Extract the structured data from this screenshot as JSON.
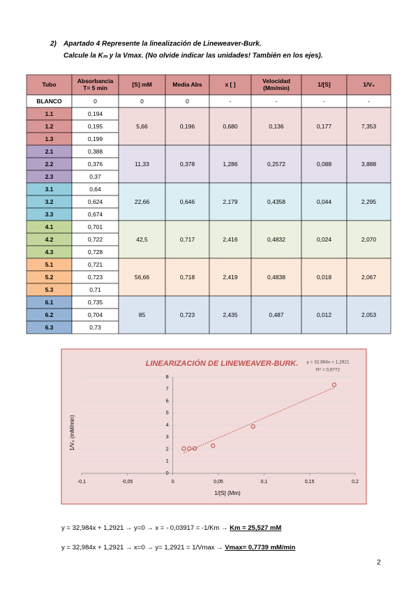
{
  "instruction": {
    "number": "2)",
    "line1": "Apartado 4 Represente la linealización de Lineweaver-Burk.",
    "line2": "Calcule la Kₘ y la Vmax. (No olvide indicar las unidades! También en los ejes)."
  },
  "table": {
    "headers": [
      [
        "Tubo"
      ],
      [
        "Absorbancia",
        "T= 5 min"
      ],
      [
        "[S] mM"
      ],
      [
        "Media Abs"
      ],
      [
        "x [ ]"
      ],
      [
        "Velocidad",
        "(Mm/min)"
      ],
      [
        "1/[S]"
      ],
      [
        "1/V₀"
      ]
    ],
    "blank": [
      "BLANCO",
      "0",
      "0",
      "0",
      "-",
      "-",
      "-",
      "-"
    ],
    "groups": [
      {
        "tubes": [
          "1.1",
          "1.2",
          "1.3"
        ],
        "absorbance": [
          "0,194",
          "0,195",
          "0,199"
        ],
        "values": [
          "5,66",
          "0,196",
          "0,680",
          "0,136",
          "0,177",
          "7,353"
        ]
      },
      {
        "tubes": [
          "2.1",
          "2.2",
          "2.3"
        ],
        "absorbance": [
          "0,388",
          "0,376",
          "0,37"
        ],
        "values": [
          "11,33",
          "0,378",
          "1,286",
          "0,2572",
          "0,088",
          "3,888"
        ]
      },
      {
        "tubes": [
          "3.1",
          "3.2",
          "3.3"
        ],
        "absorbance": [
          "0,64",
          "0,624",
          "0,674"
        ],
        "values": [
          "22,66",
          "0,646",
          "2,179",
          "0,4358",
          "0,044",
          "2,295"
        ]
      },
      {
        "tubes": [
          "4.1",
          "4.2",
          "4.3"
        ],
        "absorbance": [
          "0,701",
          "0,722",
          "0,728"
        ],
        "values": [
          "42,5",
          "0,717",
          "2,416",
          "0,4832",
          "0,024",
          "2,070"
        ]
      },
      {
        "tubes": [
          "5.1",
          "5.2",
          "5.3"
        ],
        "absorbance": [
          "0,721",
          "0,723",
          "0,71"
        ],
        "values": [
          "56,66",
          "0,718",
          "2,419",
          "0,4838",
          "0,018",
          "2,067"
        ]
      },
      {
        "tubes": [
          "6.1",
          "6.2",
          "6.3"
        ],
        "absorbance": [
          "0,735",
          "0,704",
          "0,73"
        ],
        "values": [
          "85",
          "0,723",
          "2,435",
          "0,487",
          "0,012",
          "2,053"
        ]
      }
    ]
  },
  "chart_data": {
    "type": "scatter",
    "title": "LINEARIZACIÓN DE LINEWEAVER-BURK.",
    "equation": "y = 32,984x + 1,2921",
    "r2": "R² = 0,9772",
    "trendline": {
      "slope": 32.984,
      "intercept": 1.2921
    },
    "x": [
      0.177,
      0.088,
      0.044,
      0.024,
      0.018,
      0.012
    ],
    "values": [
      7.353,
      3.888,
      2.295,
      2.07,
      2.067,
      2.053
    ],
    "color": "#c0504d",
    "xlim": [
      -0.1,
      0.2
    ],
    "xticks": [
      {
        "value": -0.1,
        "label": "-0,1"
      },
      {
        "value": -0.05,
        "label": "-0,05"
      },
      0,
      {
        "value": 0.05,
        "label": "0,05"
      },
      {
        "value": 0.1,
        "label": "0,1"
      },
      {
        "value": 0.15,
        "label": "0,15"
      },
      {
        "value": 0.2,
        "label": "0,2"
      }
    ],
    "ylim": [
      0,
      8
    ],
    "yticks": [
      0,
      1,
      2,
      3,
      4,
      5,
      6,
      7,
      8
    ],
    "xlabel": "1/[S] (Mm)",
    "ylabel": "1/V₀ (mM/min)",
    "grid": true
  },
  "equations": [
    {
      "text": "y = 32,984x + 1,2921 → y=0 → x = - 0,03917 = -1/Km → ",
      "result": "Km = 25,527 mM"
    },
    {
      "text": "y = 32,984x + 1,2921 → x=0 → y= 1,2921 = 1/Vmax → ",
      "result": "Vmax= 0,7739 mM/min"
    }
  ],
  "page_number": "2"
}
